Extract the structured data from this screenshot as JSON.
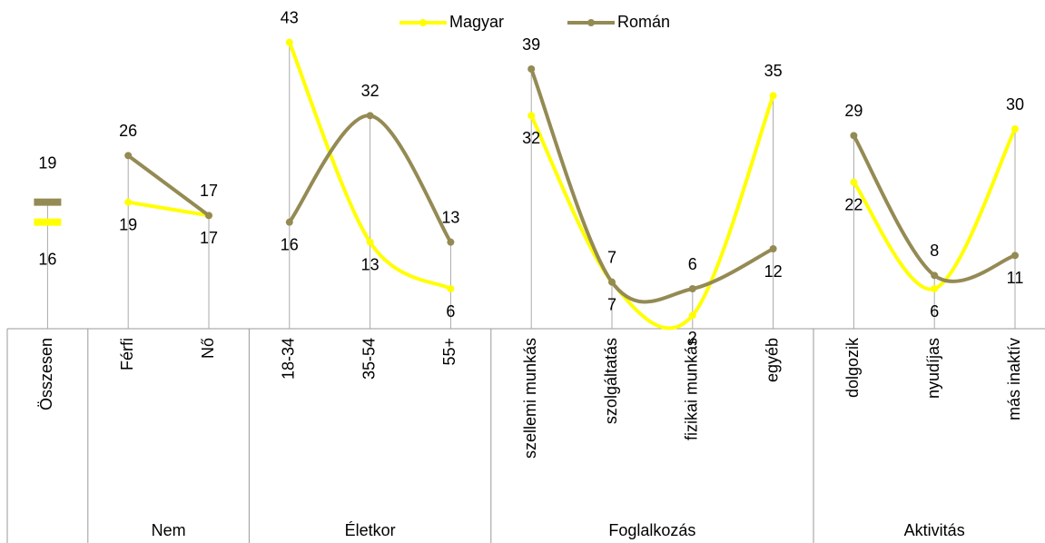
{
  "chart_data": {
    "type": "line",
    "categories": [
      "Összesen",
      "Férfi",
      "Nő",
      "18-34",
      "35-54",
      "55+",
      "szellemi munkás",
      "szolgáltatás",
      "fizikai munkás",
      "egyéb",
      "dolgozik",
      "nyudíjas",
      "más inaktív"
    ],
    "category_groups": [
      null,
      "Nem",
      "Nem",
      "Életkor",
      "Életkor",
      "Életkor",
      "Foglalkozás",
      "Foglalkozás",
      "Foglalkozás",
      "Foglalkozás",
      "Aktivitás",
      "Aktivitás",
      "Aktivitás"
    ],
    "series": [
      {
        "name": "Magyar",
        "color": "#ffff00",
        "values": [
          16,
          19,
          17,
          43,
          13,
          6,
          32,
          7,
          2,
          35,
          22,
          6,
          30
        ]
      },
      {
        "name": "Román",
        "color": "#948a54",
        "values": [
          19,
          26,
          17,
          16,
          32,
          13,
          39,
          7,
          6,
          12,
          29,
          8,
          11
        ]
      }
    ],
    "ylim": [
      0,
      45
    ],
    "legend": "top",
    "smooth": true
  }
}
